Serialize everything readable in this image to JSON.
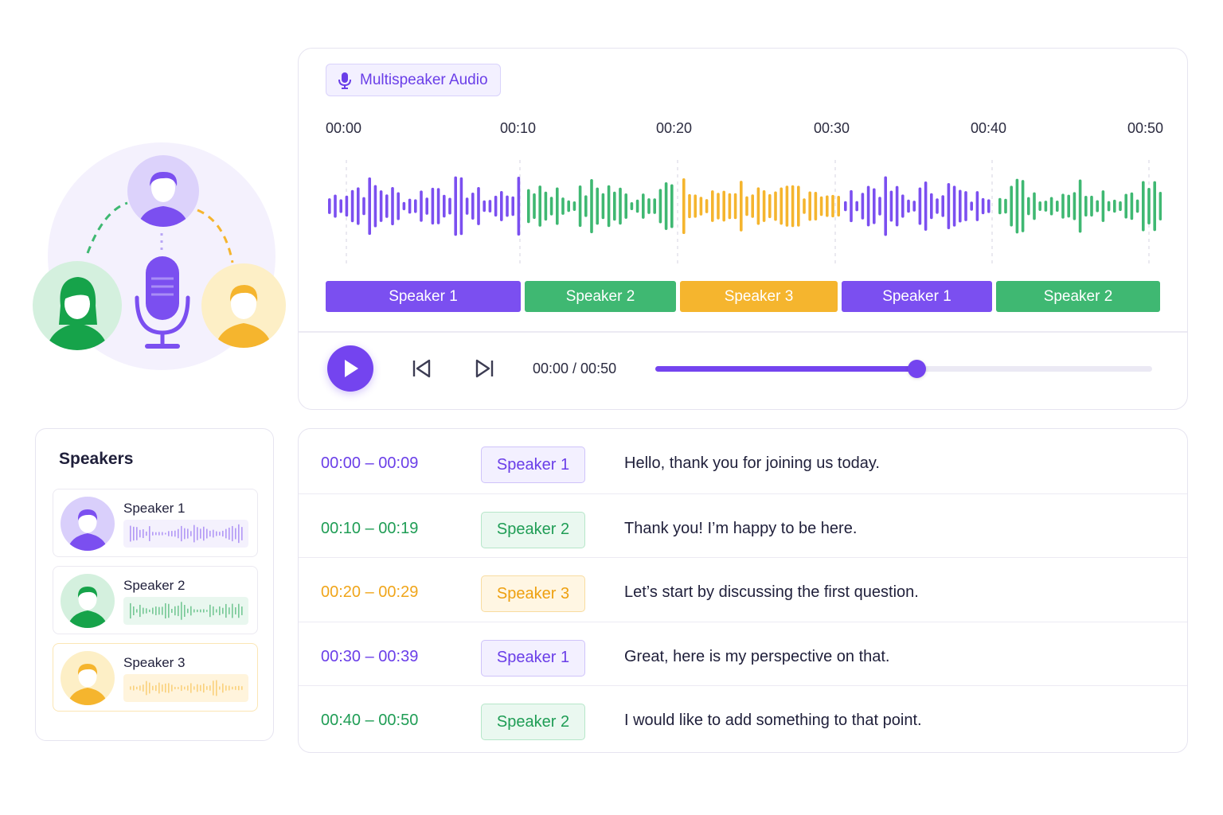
{
  "colors": {
    "speaker_1": "#7b4ff0",
    "speaker_2": "#3fb872",
    "speaker_3": "#f5b52e",
    "accent": "#7444ef"
  },
  "audio": {
    "tag_icon": "microphone-icon",
    "tag_label": "Multispeaker Audio",
    "ticks": [
      "00:00",
      "00:10",
      "00:20",
      "00:30",
      "00:40",
      "00:50"
    ],
    "segments": [
      {
        "label": "Speaker 1",
        "speaker": 1
      },
      {
        "label": "Speaker 2",
        "speaker": 2
      },
      {
        "label": "Speaker 3",
        "speaker": 3
      },
      {
        "label": "Speaker 1",
        "speaker": 1
      },
      {
        "label": "Speaker 2",
        "speaker": 2
      }
    ],
    "controls": {
      "play_icon": "play-icon",
      "prev_icon": "skip-back-icon",
      "next_icon": "skip-forward-icon",
      "time_readout": "00:00 / 00:50",
      "progress": 0.525
    }
  },
  "speakers": {
    "title": "Speakers",
    "items": [
      {
        "name": "Speaker 1",
        "icon": "person-avatar-icon"
      },
      {
        "name": "Speaker 2",
        "icon": "person-avatar-icon"
      },
      {
        "name": "Speaker 3",
        "icon": "person-avatar-icon"
      }
    ]
  },
  "transcript": [
    {
      "time": "00:00 – 00:09",
      "speaker_label": "Speaker 1",
      "speaker": 1,
      "text": "Hello, thank you for joining us today."
    },
    {
      "time": "00:10 – 00:19",
      "speaker_label": "Speaker 2",
      "speaker": 2,
      "text": "Thank you! I’m happy to be here."
    },
    {
      "time": "00:20 – 00:29",
      "speaker_label": "Speaker 3",
      "speaker": 3,
      "text": "Let’s start by discussing the first question."
    },
    {
      "time": "00:30 – 00:39",
      "speaker_label": "Speaker 1",
      "speaker": 1,
      "text": "Great, here is my perspective on that."
    },
    {
      "time": "00:40 – 00:50",
      "speaker_label": "Speaker 2",
      "speaker": 2,
      "text": "I would like to add something to that point."
    }
  ]
}
